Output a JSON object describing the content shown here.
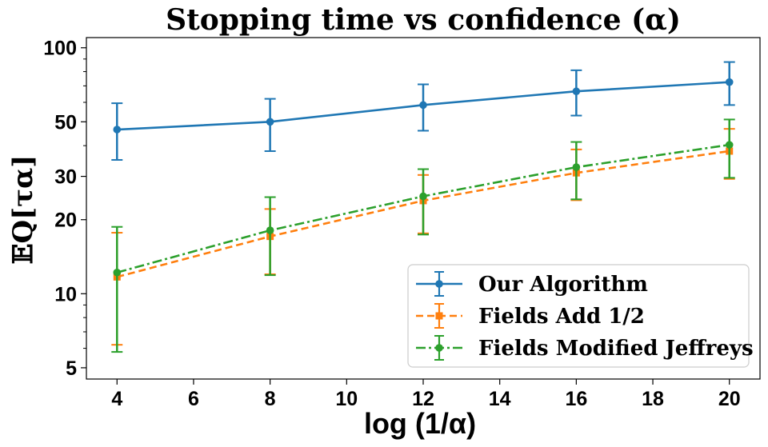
{
  "chart_data": {
    "type": "line",
    "title": "Stopping time vs confidence (α)",
    "xlabel": "log (1/α)",
    "ylabel": "𝔼Q[τα]",
    "yscale": "log",
    "xlim": [
      3.2,
      20.8
    ],
    "ylim": [
      4.5,
      110
    ],
    "x_ticks": [
      4,
      6,
      8,
      10,
      12,
      14,
      16,
      18,
      20
    ],
    "y_ticks": [
      5,
      10,
      20,
      30,
      50,
      100
    ],
    "legend_position": "lower-right",
    "x": [
      4,
      8,
      12,
      16,
      20
    ],
    "series": [
      {
        "name": "Our Algorithm",
        "color": "#1f77b4",
        "linestyle": "solid",
        "marker": "circle",
        "values": [
          46.5,
          50,
          58.5,
          66.5,
          72.5
        ],
        "err_low": [
          35,
          38,
          46,
          53,
          58.5
        ],
        "err_high": [
          59.5,
          62,
          71,
          81,
          87.5
        ]
      },
      {
        "name": "Fields Add 1/2",
        "color": "#ff7f0e",
        "linestyle": "dashed",
        "marker": "square",
        "values": [
          11.7,
          17.1,
          23.9,
          31,
          38
        ],
        "err_low": [
          6.2,
          12,
          17.6,
          24,
          29.3
        ],
        "err_high": [
          17.7,
          22.1,
          30.4,
          38.6,
          46.8
        ]
      },
      {
        "name": "Fields Modified Jeffreys",
        "color": "#2ca02c",
        "linestyle": "dashdot",
        "marker": "circle",
        "values": [
          12.2,
          18.1,
          24.9,
          32.7,
          40.3
        ],
        "err_low": [
          5.8,
          11.9,
          17.4,
          24.2,
          29.6
        ],
        "err_high": [
          18.7,
          24.7,
          32.1,
          41.4,
          51.1
        ]
      }
    ]
  }
}
